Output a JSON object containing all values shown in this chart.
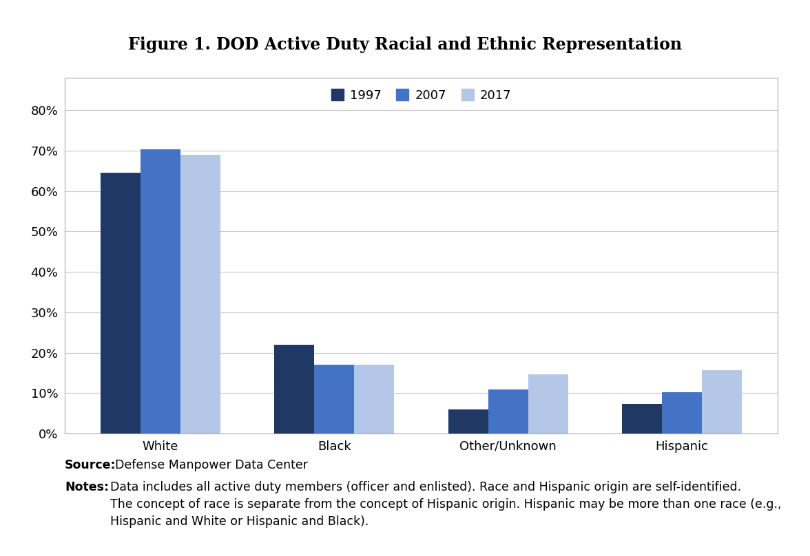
{
  "title": "Figure 1. DOD Active Duty Racial and Ethnic Representation",
  "categories": [
    "White",
    "Black",
    "Other/Unknown",
    "Hispanic"
  ],
  "years": [
    "1997",
    "2007",
    "2017"
  ],
  "values": {
    "1997": [
      0.645,
      0.22,
      0.06,
      0.073
    ],
    "2007": [
      0.703,
      0.17,
      0.11,
      0.102
    ],
    "2017": [
      0.69,
      0.17,
      0.147,
      0.157
    ]
  },
  "bar_colors": [
    "#1f3864",
    "#4472c4",
    "#b4c7e7"
  ],
  "ylim": [
    0,
    0.88
  ],
  "yticks": [
    0.0,
    0.1,
    0.2,
    0.3,
    0.4,
    0.5,
    0.6,
    0.7,
    0.8
  ],
  "yticklabels": [
    "0%",
    "10%",
    "20%",
    "30%",
    "40%",
    "50%",
    "60%",
    "70%",
    "80%"
  ],
  "background_color": "#ffffff",
  "plot_bg_color": "#ffffff",
  "grid_color": "#c8c8c8",
  "bar_width": 0.23,
  "title_fontsize": 17,
  "tick_fontsize": 13,
  "legend_fontsize": 13,
  "source_fontsize": 12.5,
  "notes_fontsize": 12.5,
  "source_bold": "Source:",
  "source_normal": " Defense Manpower Data Center",
  "notes_bold": "Notes:",
  "notes_normal": " Data includes all active duty members (officer and enlisted). Race and Hispanic origin are self-identified.\nThe concept of race is separate from the concept of Hispanic origin. Hispanic may be more than one race (e.g.,\nHispanic and White or Hispanic and Black)."
}
